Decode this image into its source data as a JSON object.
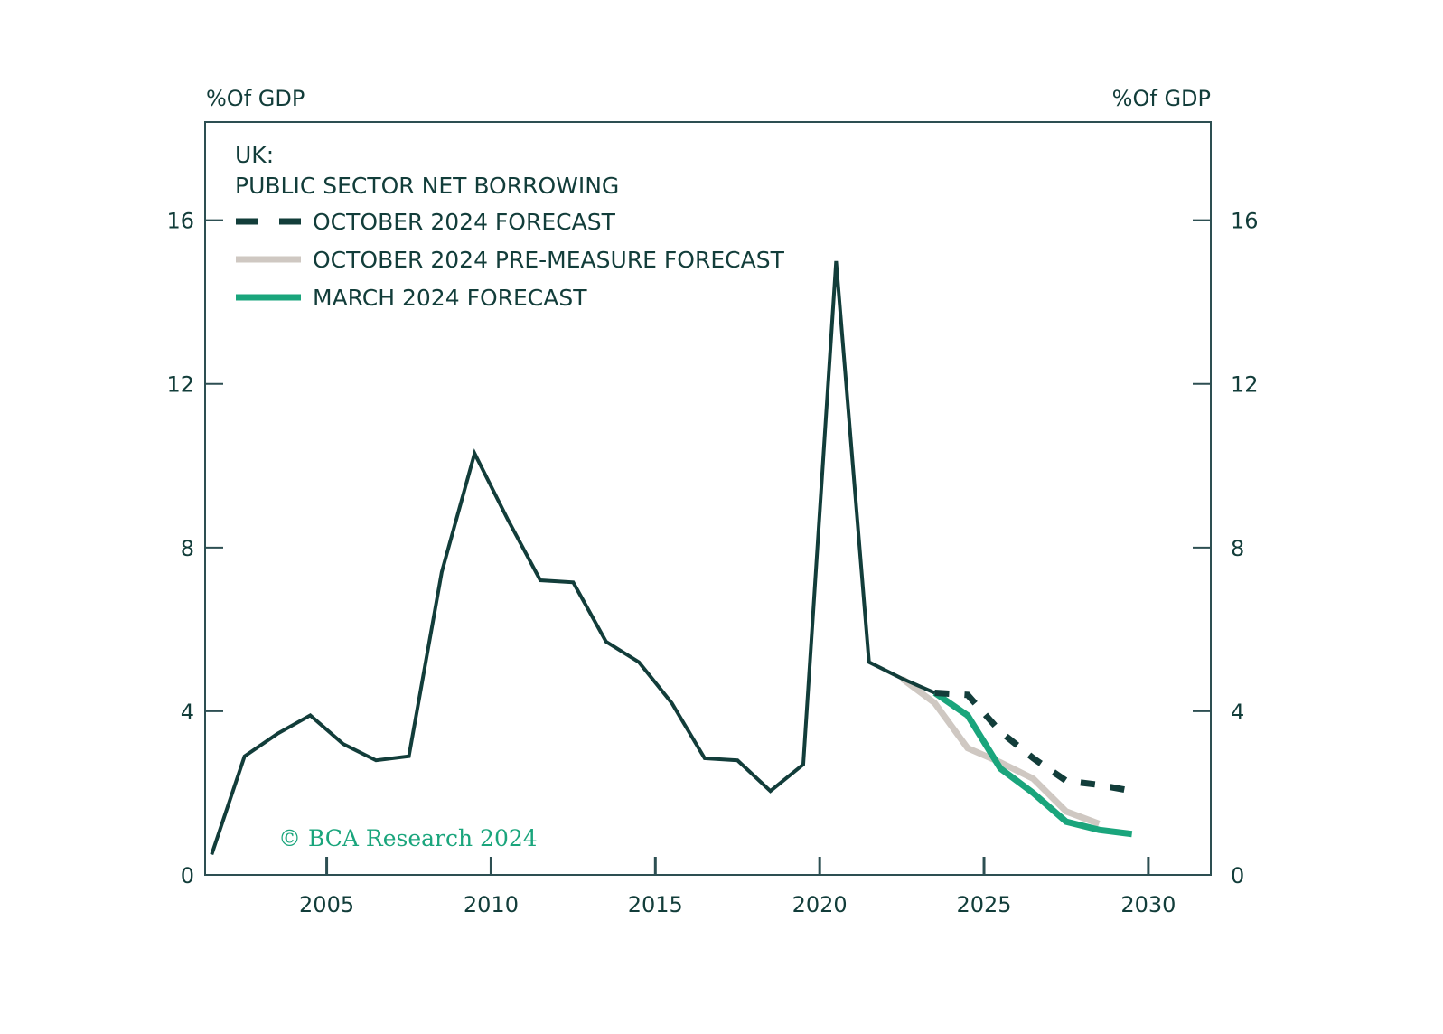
{
  "chart_data": {
    "type": "line",
    "title": "UK:",
    "subtitle": "PUBLIC SECTOR NET BORROWING",
    "ylabel_left": "%Of GDP",
    "ylabel_right": "%Of GDP",
    "ylim": [
      0,
      18.4
    ],
    "xlim": [
      2001.3,
      2031.9
    ],
    "yticks": [
      0,
      4,
      8,
      12,
      16
    ],
    "xticks": [
      2005,
      2010,
      2015,
      2020,
      2025,
      2030
    ],
    "grid": false,
    "legend_position": "top-left",
    "watermark": "© BCA Research 2024",
    "series": [
      {
        "name": "",
        "style": "solid",
        "color": "#123d3a",
        "x": [
          2001.5,
          2002.5,
          2003.5,
          2004.5,
          2005.5,
          2006.5,
          2007.5,
          2008.5,
          2009.5,
          2010.5,
          2011.5,
          2012.5,
          2013.5,
          2014.5,
          2015.5,
          2016.5,
          2017.5,
          2018.5,
          2019.5,
          2020.5,
          2021.5,
          2022.5,
          2023.5
        ],
        "y": [
          0.5,
          2.9,
          3.45,
          3.9,
          3.2,
          2.8,
          2.9,
          7.4,
          10.3,
          8.7,
          7.2,
          7.15,
          5.7,
          5.2,
          4.2,
          2.85,
          2.8,
          2.05,
          2.7,
          15.0,
          5.2,
          4.8,
          4.45
        ]
      },
      {
        "name": "OCTOBER 2024 FORECAST",
        "style": "dashed",
        "color": "#123d3a",
        "x": [
          2023.5,
          2024.5,
          2025.5,
          2026.5,
          2027.5,
          2028.5,
          2029.5
        ],
        "y": [
          4.45,
          4.4,
          3.5,
          2.85,
          2.3,
          2.2,
          2.05
        ]
      },
      {
        "name": "OCTOBER 2024 PRE-MEASURE FORECAST",
        "style": "solid",
        "color": "#cfc8c2",
        "x": [
          2022.5,
          2023.5,
          2024.5,
          2025.5,
          2026.5,
          2027.5,
          2028.5
        ],
        "y": [
          4.8,
          4.2,
          3.1,
          2.75,
          2.35,
          1.55,
          1.25
        ]
      },
      {
        "name": "MARCH 2024 FORECAST",
        "style": "solid",
        "color": "#1aa57c",
        "x": [
          2023.5,
          2024.5,
          2025.5,
          2026.5,
          2027.5,
          2028.5,
          2029.5
        ],
        "y": [
          4.45,
          3.9,
          2.6,
          2.0,
          1.3,
          1.1,
          1.0
        ]
      }
    ]
  }
}
